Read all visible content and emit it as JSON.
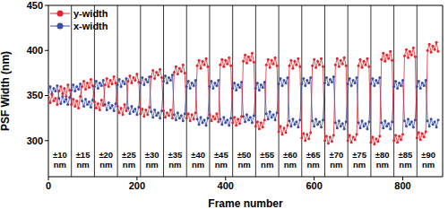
{
  "chart_data": {
    "type": "line",
    "xlabel": "Frame number",
    "ylabel": "PSF Width (nm)",
    "xlim": [
      0,
      890
    ],
    "xticks": [
      0,
      200,
      400,
      600,
      800
    ],
    "ylim": [
      260,
      450
    ],
    "yticks": [
      300,
      350,
      400,
      450
    ],
    "legend": "upper left",
    "x": [
      0,
      4,
      8,
      12,
      16,
      20,
      24,
      28,
      32,
      36,
      40,
      44,
      48,
      52,
      56,
      60,
      64,
      68,
      72,
      76,
      80,
      84,
      88,
      92,
      96,
      100,
      104,
      108,
      112,
      116,
      120,
      124,
      128,
      132,
      136,
      140,
      144,
      148,
      152,
      156,
      160,
      164,
      168,
      172,
      176,
      180,
      184,
      188,
      192,
      196,
      200,
      204,
      208,
      212,
      216,
      220,
      224,
      228,
      232,
      236,
      240,
      244,
      248,
      252,
      256,
      260,
      264,
      268,
      272,
      276,
      280,
      284,
      288,
      292,
      296,
      300,
      304,
      308,
      312,
      316,
      320,
      324,
      328,
      332,
      336,
      340,
      344,
      348,
      352,
      356,
      360,
      364,
      368,
      372,
      376,
      380,
      384,
      388,
      392,
      396,
      400,
      404,
      408,
      412,
      416,
      420,
      424,
      428,
      432,
      436,
      440,
      444,
      448,
      452,
      456,
      460,
      464,
      468,
      472,
      476,
      480,
      484,
      488,
      492,
      496,
      500,
      504,
      508,
      512,
      516,
      520,
      524,
      528,
      532,
      536,
      540,
      544,
      548,
      552,
      556,
      560,
      564,
      568,
      572,
      576,
      580,
      584,
      588,
      592,
      596,
      600,
      604,
      608,
      612,
      616,
      620,
      624,
      628,
      632,
      636,
      640,
      644,
      648,
      652,
      656,
      660,
      664,
      668,
      672,
      676,
      680,
      684,
      688,
      692,
      696,
      700,
      704,
      708,
      712,
      716,
      720,
      724,
      728,
      732,
      736,
      740,
      744,
      748,
      752,
      756,
      760,
      764,
      768,
      772,
      776,
      780,
      784,
      788,
      792,
      796,
      800,
      804,
      808,
      812,
      816,
      820,
      824,
      828,
      832,
      836,
      840,
      844,
      848,
      852,
      856,
      860,
      864,
      868,
      872,
      876,
      880
    ],
    "series": [
      {
        "name": "y-width",
        "color": "#e3262d",
        "marker": "circle",
        "values": [
          348,
          342,
          351,
          344,
          347,
          340,
          355,
          360,
          352,
          358,
          349,
          362,
          356,
          340,
          346,
          338,
          344,
          336,
          349,
          360,
          366,
          357,
          364,
          359,
          368,
          361,
          343,
          336,
          341,
          334,
          345,
          339,
          362,
          369,
          360,
          367,
          363,
          371,
          364,
          338,
          331,
          336,
          329,
          340,
          333,
          366,
          372,
          364,
          370,
          367,
          374,
          365,
          330,
          335,
          327,
          334,
          329,
          337,
          371,
          378,
          369,
          376,
          373,
          379,
          370,
          333,
          326,
          331,
          328,
          334,
          325,
          376,
          382,
          374,
          380,
          377,
          384,
          375,
          325,
          330,
          322,
          329,
          324,
          331,
          383,
          389,
          380,
          388,
          384,
          391,
          382,
          329,
          322,
          327,
          324,
          330,
          321,
          384,
          390,
          382,
          389,
          385,
          392,
          383,
          320,
          326,
          317,
          324,
          319,
          327,
          388,
          395,
          386,
          393,
          389,
          397,
          387,
          316,
          321,
          313,
          320,
          315,
          323,
          384,
          390,
          381,
          389,
          385,
          392,
          383,
          310,
          316,
          307,
          314,
          309,
          317,
          383,
          389,
          380,
          388,
          384,
          391,
          382,
          303,
          308,
          300,
          307,
          302,
          309,
          383,
          390,
          381,
          388,
          384,
          391,
          382,
          300,
          305,
          297,
          304,
          299,
          306,
          384,
          391,
          382,
          389,
          385,
          392,
          383,
          300,
          306,
          298,
          304,
          301,
          307,
          383,
          390,
          381,
          388,
          384,
          391,
          382,
          298,
          304,
          296,
          302,
          299,
          305,
          390,
          397,
          388,
          395,
          391,
          399,
          389,
          300,
          306,
          298,
          305,
          301,
          307,
          394,
          401,
          392,
          399,
          395,
          403,
          393,
          303,
          309,
          301,
          308,
          304,
          310,
          400,
          407,
          398,
          405,
          401,
          409,
          399
        ]
      },
      {
        "name": "x-width",
        "color": "#3b4ea6",
        "marker": "circle",
        "values": [
          354,
          360,
          352,
          358,
          355,
          361,
          347,
          341,
          349,
          343,
          346,
          340,
          348,
          356,
          362,
          355,
          360,
          357,
          363,
          344,
          338,
          346,
          340,
          343,
          337,
          345,
          360,
          366,
          358,
          364,
          361,
          367,
          340,
          334,
          342,
          336,
          339,
          333,
          341,
          362,
          368,
          360,
          366,
          363,
          369,
          336,
          330,
          338,
          332,
          335,
          329,
          337,
          364,
          370,
          362,
          368,
          365,
          371,
          332,
          326,
          334,
          328,
          331,
          325,
          333,
          366,
          372,
          364,
          370,
          367,
          373,
          329,
          323,
          331,
          325,
          328,
          322,
          330,
          360,
          366,
          358,
          364,
          361,
          367,
          324,
          318,
          326,
          320,
          323,
          317,
          325,
          360,
          366,
          358,
          364,
          361,
          367,
          324,
          318,
          326,
          320,
          323,
          317,
          325,
          358,
          364,
          356,
          362,
          359,
          365,
          327,
          321,
          329,
          323,
          326,
          320,
          328,
          358,
          364,
          356,
          362,
          359,
          365,
          330,
          324,
          332,
          326,
          329,
          323,
          331,
          363,
          369,
          361,
          367,
          364,
          370,
          322,
          316,
          324,
          318,
          321,
          315,
          323,
          363,
          369,
          361,
          367,
          364,
          370,
          322,
          316,
          324,
          318,
          321,
          315,
          323,
          364,
          370,
          362,
          368,
          365,
          371,
          320,
          314,
          322,
          316,
          319,
          313,
          321,
          363,
          369,
          361,
          367,
          364,
          370,
          320,
          314,
          322,
          316,
          319,
          313,
          321,
          363,
          369,
          361,
          367,
          364,
          370,
          320,
          314,
          322,
          316,
          319,
          313,
          321,
          360,
          366,
          358,
          364,
          361,
          367,
          322,
          316,
          324,
          318,
          321,
          315,
          323,
          360,
          366,
          358,
          364,
          361,
          367,
          322,
          316,
          324,
          318,
          321,
          315,
          323
        ]
      }
    ],
    "segments": [
      {
        "label": "±10 nm",
        "start": 0,
        "end": 52
      },
      {
        "label": "±15 nm",
        "start": 52,
        "end": 104
      },
      {
        "label": "±20 nm",
        "start": 104,
        "end": 156
      },
      {
        "label": "±25 nm",
        "start": 156,
        "end": 208
      },
      {
        "label": "±30 nm",
        "start": 208,
        "end": 260
      },
      {
        "label": "±35 nm",
        "start": 260,
        "end": 312
      },
      {
        "label": "±40 nm",
        "start": 312,
        "end": 364
      },
      {
        "label": "±45 nm",
        "start": 364,
        "end": 416
      },
      {
        "label": "±50 nm",
        "start": 416,
        "end": 468
      },
      {
        "label": "±55 nm",
        "start": 468,
        "end": 520
      },
      {
        "label": "±60 nm",
        "start": 520,
        "end": 572
      },
      {
        "label": "±65 nm",
        "start": 572,
        "end": 624
      },
      {
        "label": "±70 nm",
        "start": 624,
        "end": 676
      },
      {
        "label": "±75 nm",
        "start": 676,
        "end": 728
      },
      {
        "label": "±80 nm",
        "start": 728,
        "end": 780
      },
      {
        "label": "±85 nm",
        "start": 780,
        "end": 832
      },
      {
        "label": "±90 nm",
        "start": 832,
        "end": 884
      }
    ]
  }
}
